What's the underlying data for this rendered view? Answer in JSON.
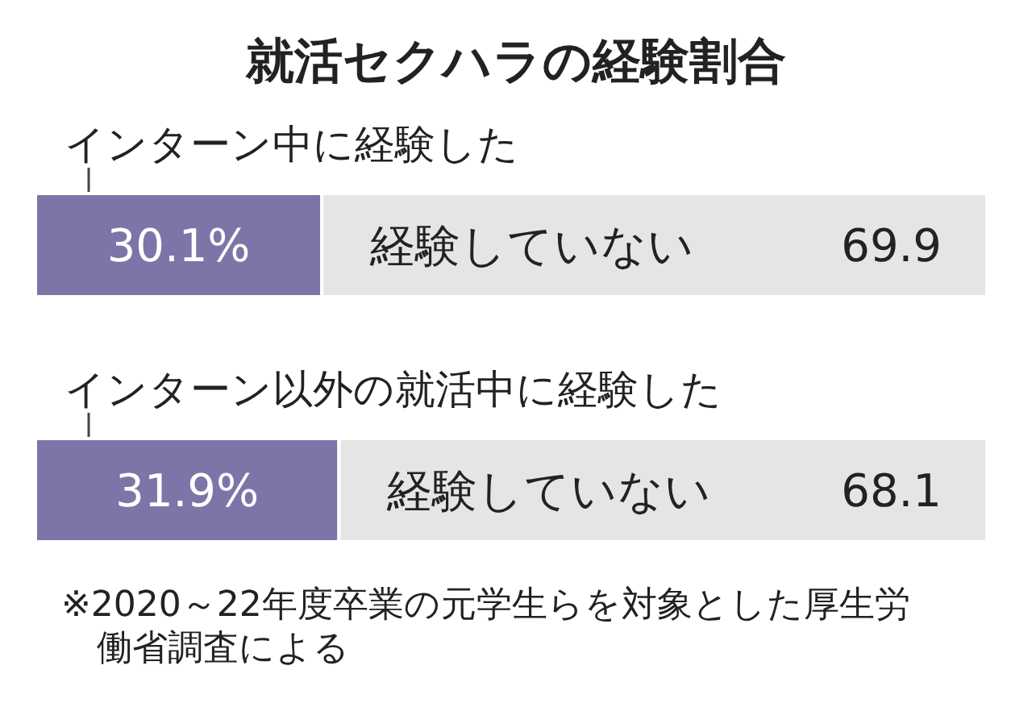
{
  "chart_data": {
    "type": "bar",
    "orientation": "horizontal",
    "stacked": true,
    "title": "就活セクハラの経験割合",
    "categories": [
      "インターン中に経験した",
      "インターン以外の就活中に経験した"
    ],
    "series": [
      {
        "color": "#7b75a8",
        "values": [
          30.1,
          31.9
        ],
        "value_labels": [
          "30.1%",
          "31.9%"
        ]
      },
      {
        "name": "経験していない",
        "color": "#e5e5e5",
        "values": [
          69.9,
          68.1
        ],
        "value_labels": [
          "69.9",
          "68.1"
        ]
      }
    ],
    "xlim": [
      0,
      100
    ],
    "annotations": [
      "※2020～22年度卒業の元学生らを対象とした厚生労働省調査による"
    ]
  }
}
